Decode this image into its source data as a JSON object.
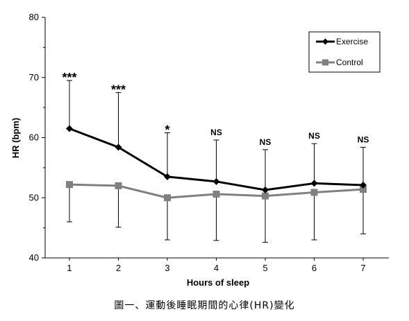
{
  "caption": "圖一、運動後睡眠期間的心律(HR)變化",
  "chart_data": {
    "type": "line",
    "xlabel": "Hours of sleep",
    "ylabel": "HR (bpm)",
    "ylim": [
      40,
      80
    ],
    "yticks": [
      40,
      50,
      60,
      70,
      80
    ],
    "x": [
      1,
      2,
      3,
      4,
      5,
      6,
      7
    ],
    "grid": false,
    "legend_position": "top-right",
    "series": [
      {
        "name": "Exercise",
        "color": "#000000",
        "marker": "diamond",
        "values": [
          61.5,
          58.4,
          53.5,
          52.7,
          51.3,
          52.4,
          52.1
        ],
        "error_upper": [
          69.5,
          67.5,
          60.8,
          59.6,
          58.0,
          59.0,
          58.4
        ]
      },
      {
        "name": "Control",
        "color": "#808080",
        "marker": "square",
        "values": [
          52.2,
          52.0,
          50.0,
          50.6,
          50.3,
          50.9,
          51.4
        ],
        "error_lower": [
          46.0,
          45.1,
          43.0,
          42.9,
          42.6,
          43.0,
          44.0
        ]
      }
    ],
    "annotations": [
      "***",
      "***",
      "*",
      "NS",
      "NS",
      "NS",
      "NS"
    ]
  }
}
